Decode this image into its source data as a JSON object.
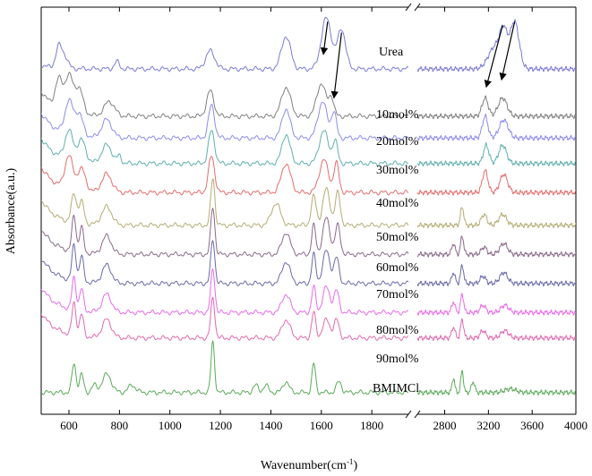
{
  "chart_data": {
    "type": "line",
    "title": "",
    "xlabel": "Wavenumber(cm-1)",
    "xlabel_parts": {
      "main": "Wavenumber(cm",
      "sup": "-1",
      "close": ")"
    },
    "ylabel": "Absorbance(a.u.)",
    "x_axis_break": true,
    "x_segments": [
      {
        "range": [
          490,
          1945
        ],
        "ticks": [
          600,
          800,
          1000,
          1200,
          1400,
          1600,
          1800
        ]
      },
      {
        "range": [
          2550,
          4000
        ],
        "ticks": [
          2800,
          3200,
          3600,
          4000
        ]
      }
    ],
    "series": [
      {
        "name": "Urea",
        "color": "#7a7ad8",
        "baseline": 0.95,
        "edge": "plain",
        "peaks": [
          [
            560,
            0.06,
            12
          ],
          [
            585,
            0.03,
            12
          ],
          [
            790,
            0.02,
            10
          ],
          [
            1160,
            0.05,
            18
          ],
          [
            1460,
            0.09,
            18
          ],
          [
            1620,
            0.14,
            20
          ],
          [
            1680,
            0.11,
            16
          ],
          [
            3260,
            0.06,
            60
          ],
          [
            3340,
            0.09,
            35
          ],
          [
            3440,
            0.13,
            40
          ]
        ]
      },
      {
        "name": "10mol%",
        "color": "#808080",
        "baseline": 0.82,
        "edge": "rise",
        "peaks": [
          [
            560,
            0.08,
            14
          ],
          [
            600,
            0.1,
            16
          ],
          [
            640,
            0.07,
            16
          ],
          [
            760,
            0.04,
            20
          ],
          [
            1160,
            0.07,
            14
          ],
          [
            1460,
            0.08,
            18
          ],
          [
            1600,
            0.09,
            18
          ],
          [
            1640,
            0.05,
            10
          ],
          [
            3170,
            0.05,
            28
          ],
          [
            3330,
            0.05,
            40
          ]
        ]
      },
      {
        "name": "20mol%",
        "color": "#8c8cee",
        "baseline": 0.76,
        "edge": "rise",
        "peaks": [
          [
            600,
            0.09,
            16
          ],
          [
            640,
            0.06,
            16
          ],
          [
            750,
            0.05,
            20
          ],
          [
            1165,
            0.09,
            12
          ],
          [
            1460,
            0.08,
            16
          ],
          [
            1605,
            0.1,
            18
          ],
          [
            1650,
            0.07,
            10
          ],
          [
            3170,
            0.06,
            25
          ],
          [
            3340,
            0.05,
            40
          ]
        ]
      },
      {
        "name": "30mol%",
        "color": "#5fafaf",
        "baseline": 0.69,
        "edge": "rise",
        "peaks": [
          [
            600,
            0.08,
            16
          ],
          [
            650,
            0.06,
            16
          ],
          [
            750,
            0.05,
            20
          ],
          [
            800,
            0.02,
            8
          ],
          [
            1165,
            0.09,
            12
          ],
          [
            1460,
            0.08,
            16
          ],
          [
            1610,
            0.09,
            18
          ],
          [
            1655,
            0.06,
            10
          ],
          [
            3180,
            0.05,
            25
          ],
          [
            3330,
            0.05,
            35
          ]
        ]
      },
      {
        "name": "40mol%",
        "color": "#e46d6d",
        "baseline": 0.61,
        "edge": "rise",
        "peaks": [
          [
            600,
            0.09,
            16
          ],
          [
            650,
            0.06,
            16
          ],
          [
            750,
            0.05,
            20
          ],
          [
            1165,
            0.1,
            12
          ],
          [
            1460,
            0.08,
            18
          ],
          [
            1610,
            0.09,
            18
          ],
          [
            1660,
            0.08,
            10
          ],
          [
            3170,
            0.06,
            25
          ],
          [
            3340,
            0.05,
            35
          ]
        ]
      },
      {
        "name": "50mol%",
        "color": "#b4ac74",
        "baseline": 0.52,
        "edge": "rise",
        "peaks": [
          [
            620,
            0.08,
            10
          ],
          [
            650,
            0.06,
            10
          ],
          [
            750,
            0.05,
            20
          ],
          [
            1170,
            0.13,
            8
          ],
          [
            1420,
            0.06,
            18
          ],
          [
            1570,
            0.08,
            10
          ],
          [
            1620,
            0.1,
            14
          ],
          [
            1665,
            0.09,
            10
          ],
          [
            2960,
            0.05,
            15
          ],
          [
            3160,
            0.03,
            25
          ],
          [
            3330,
            0.03,
            35
          ]
        ]
      },
      {
        "name": "60mol%",
        "color": "#8a6a8a",
        "baseline": 0.44,
        "edge": "rise",
        "peaks": [
          [
            620,
            0.1,
            8
          ],
          [
            650,
            0.07,
            8
          ],
          [
            750,
            0.05,
            18
          ],
          [
            1170,
            0.13,
            8
          ],
          [
            1460,
            0.06,
            16
          ],
          [
            1570,
            0.08,
            8
          ],
          [
            1620,
            0.1,
            14
          ],
          [
            1665,
            0.08,
            10
          ],
          [
            2880,
            0.03,
            15
          ],
          [
            2960,
            0.05,
            14
          ],
          [
            3160,
            0.02,
            25
          ],
          [
            3340,
            0.03,
            35
          ]
        ]
      },
      {
        "name": "70mol%",
        "color": "#6a6aaa",
        "baseline": 0.36,
        "edge": "rise",
        "peaks": [
          [
            620,
            0.1,
            8
          ],
          [
            650,
            0.07,
            8
          ],
          [
            750,
            0.05,
            18
          ],
          [
            1170,
            0.12,
            8
          ],
          [
            1460,
            0.06,
            16
          ],
          [
            1570,
            0.08,
            8
          ],
          [
            1620,
            0.09,
            14
          ],
          [
            1660,
            0.07,
            10
          ],
          [
            2880,
            0.03,
            15
          ],
          [
            2960,
            0.05,
            14
          ],
          [
            3150,
            0.02,
            25
          ],
          [
            3340,
            0.03,
            35
          ]
        ]
      },
      {
        "name": "80mol%",
        "color": "#ea6aea",
        "baseline": 0.28,
        "edge": "rise",
        "peaks": [
          [
            620,
            0.09,
            8
          ],
          [
            650,
            0.06,
            8
          ],
          [
            750,
            0.05,
            18
          ],
          [
            1170,
            0.12,
            8
          ],
          [
            1460,
            0.05,
            16
          ],
          [
            1570,
            0.07,
            8
          ],
          [
            1620,
            0.07,
            14
          ],
          [
            1660,
            0.06,
            10
          ],
          [
            2880,
            0.03,
            15
          ],
          [
            2960,
            0.05,
            14
          ],
          [
            3150,
            0.02,
            25
          ],
          [
            3350,
            0.02,
            35
          ]
        ]
      },
      {
        "name": "90mol%",
        "color": "#e06ab0",
        "baseline": 0.21,
        "edge": "rise",
        "peaks": [
          [
            620,
            0.09,
            8
          ],
          [
            650,
            0.06,
            8
          ],
          [
            750,
            0.05,
            18
          ],
          [
            1170,
            0.11,
            8
          ],
          [
            1460,
            0.05,
            16
          ],
          [
            1570,
            0.07,
            8
          ],
          [
            1620,
            0.05,
            14
          ],
          [
            1660,
            0.05,
            10
          ],
          [
            2880,
            0.03,
            15
          ],
          [
            2960,
            0.05,
            14
          ],
          [
            3150,
            0.02,
            25
          ],
          [
            3350,
            0.02,
            35
          ]
        ]
      },
      {
        "name": "BMIMCl",
        "color": "#5aaa5a",
        "baseline": 0.06,
        "edge": "plain",
        "peaks": [
          [
            620,
            0.08,
            8
          ],
          [
            650,
            0.05,
            8
          ],
          [
            700,
            0.02,
            10
          ],
          [
            750,
            0.05,
            18
          ],
          [
            850,
            0.02,
            15
          ],
          [
            1170,
            0.14,
            7
          ],
          [
            1340,
            0.02,
            10
          ],
          [
            1380,
            0.02,
            10
          ],
          [
            1460,
            0.03,
            12
          ],
          [
            1570,
            0.08,
            7
          ],
          [
            1670,
            0.03,
            10
          ],
          [
            2880,
            0.04,
            12
          ],
          [
            2960,
            0.06,
            12
          ],
          [
            3060,
            0.03,
            15
          ],
          [
            3400,
            0.01,
            50
          ]
        ]
      }
    ],
    "arrows": [
      {
        "from_x": 1625,
        "from_y": 1.08,
        "to_x": 1608,
        "to_y": 0.99
      },
      {
        "from_x": 1680,
        "from_y": 1.05,
        "to_x": 1650,
        "to_y": 0.87
      },
      {
        "from_x": 3330,
        "from_y": 1.07,
        "to_x": 3180,
        "to_y": 0.9
      },
      {
        "from_x": 3440,
        "from_y": 1.08,
        "to_x": 3320,
        "to_y": 0.92
      }
    ]
  }
}
